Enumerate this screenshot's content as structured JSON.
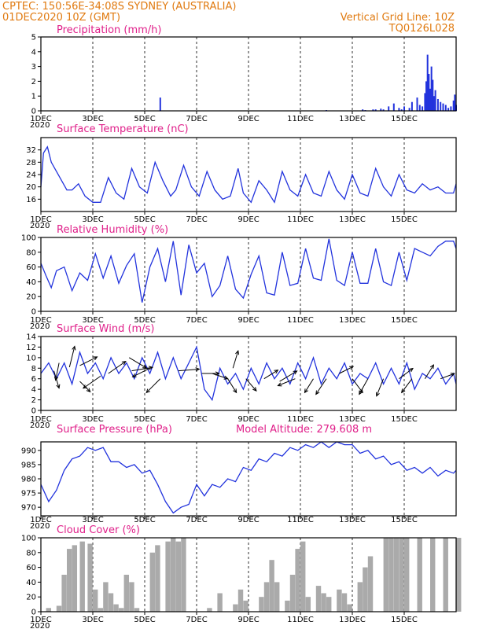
{
  "header": {
    "line1_left": "CPTEC:   150:56E-34:08S   SYDNEY (AUSTRALIA)",
    "line2_left": "01DEC2020 10Z (GMT)",
    "line2_right": "Vertical Grid Line: 10Z",
    "line3_right": "TQ0126L028"
  },
  "x_labels": [
    "1DEC",
    "3DEC",
    "5DEC",
    "7DEC",
    "9DEC",
    "11DEC",
    "13DEC",
    "15DEC"
  ],
  "x_sublabel": "2020",
  "colors": {
    "line": "#2233dd",
    "bar": "#2233dd",
    "cloud": "#aaaaaa",
    "header": "#e07a10",
    "title": "#e0208a"
  },
  "chart_data": [
    {
      "type": "bar",
      "title": "Precipitation (mm/h)",
      "ylim": [
        0,
        5
      ],
      "yticks": [
        0,
        1,
        2,
        3,
        4,
        5
      ],
      "x": [
        4.6,
        11.0,
        12.4,
        12.5,
        12.8,
        12.9,
        13.1,
        13.2,
        13.4,
        13.6,
        13.8,
        13.9,
        14.0,
        14.2,
        14.3,
        14.5,
        14.6,
        14.7,
        14.8,
        14.85,
        14.9,
        14.95,
        15.0,
        15.05,
        15.1,
        15.15,
        15.2,
        15.3,
        15.4,
        15.5,
        15.6,
        15.7,
        15.8,
        15.9,
        15.95,
        16.0
      ],
      "values": [
        0.9,
        0.05,
        0.1,
        0.05,
        0.1,
        0.1,
        0.15,
        0.1,
        0.3,
        0.5,
        0.2,
        0.1,
        0.3,
        0.2,
        0.6,
        0.9,
        0.4,
        0.3,
        1.2,
        2.0,
        3.8,
        2.5,
        1.5,
        3.0,
        2.1,
        1.0,
        1.4,
        0.8,
        0.6,
        0.5,
        0.4,
        0.2,
        0.3,
        0.7,
        1.1,
        0.4
      ]
    },
    {
      "type": "line",
      "title": "Surface Temperature (nC)",
      "ylim": [
        12,
        36
      ],
      "yticks": [
        16,
        20,
        24,
        28,
        32
      ],
      "x": [
        0,
        0.1,
        0.25,
        0.4,
        0.6,
        0.8,
        1.0,
        1.2,
        1.45,
        1.7,
        2.0,
        2.3,
        2.6,
        2.9,
        3.2,
        3.5,
        3.8,
        4.1,
        4.4,
        4.7,
        5.0,
        5.2,
        5.5,
        5.8,
        6.1,
        6.4,
        6.7,
        7.0,
        7.3,
        7.6,
        7.8,
        8.1,
        8.4,
        8.7,
        9.0,
        9.3,
        9.6,
        9.9,
        10.2,
        10.5,
        10.8,
        11.1,
        11.4,
        11.7,
        12.0,
        12.3,
        12.6,
        12.9,
        13.2,
        13.5,
        13.8,
        14.1,
        14.4,
        14.7,
        15.0,
        15.3,
        15.6,
        15.9,
        16.0
      ],
      "values": [
        20,
        31,
        33,
        28,
        25,
        22,
        19,
        19,
        21,
        17,
        15,
        15,
        23,
        18,
        16,
        26,
        20,
        18,
        28,
        22,
        17,
        19,
        27,
        20,
        17,
        25,
        19,
        16,
        17,
        26,
        18,
        15,
        22,
        19,
        15,
        25,
        19,
        17,
        24,
        18,
        17,
        25,
        19,
        16,
        24,
        18,
        17,
        26,
        20,
        17,
        24,
        19,
        18,
        21,
        19,
        20,
        18,
        18,
        21
      ]
    },
    {
      "type": "line",
      "title": "Relative Humidity (%)",
      "ylim": [
        0,
        100
      ],
      "yticks": [
        0,
        20,
        40,
        60,
        80,
        100
      ],
      "x": [
        0,
        0.2,
        0.4,
        0.6,
        0.9,
        1.2,
        1.5,
        1.8,
        2.1,
        2.4,
        2.7,
        3.0,
        3.3,
        3.6,
        3.9,
        4.2,
        4.5,
        4.8,
        5.1,
        5.4,
        5.7,
        6.0,
        6.3,
        6.6,
        6.9,
        7.2,
        7.5,
        7.8,
        8.1,
        8.4,
        8.7,
        9.0,
        9.3,
        9.6,
        9.9,
        10.2,
        10.5,
        10.8,
        11.1,
        11.4,
        11.7,
        12.0,
        12.3,
        12.6,
        12.9,
        13.2,
        13.5,
        13.8,
        14.1,
        14.4,
        14.7,
        15.0,
        15.3,
        15.6,
        15.9,
        16.0
      ],
      "values": [
        65,
        48,
        32,
        55,
        60,
        28,
        52,
        42,
        78,
        45,
        75,
        38,
        62,
        78,
        12,
        60,
        85,
        40,
        95,
        22,
        90,
        52,
        65,
        20,
        35,
        75,
        30,
        18,
        50,
        75,
        25,
        22,
        80,
        35,
        38,
        85,
        45,
        42,
        98,
        42,
        35,
        80,
        38,
        38,
        85,
        40,
        35,
        80,
        42,
        85,
        80,
        75,
        88,
        95,
        95,
        85
      ]
    },
    {
      "type": "line",
      "title": "Surface Wind (m/s)",
      "ylim": [
        0,
        14
      ],
      "yticks": [
        0,
        2,
        4,
        6,
        8,
        10,
        12,
        14
      ],
      "x": [
        0,
        0.3,
        0.6,
        0.9,
        1.2,
        1.5,
        1.8,
        2.1,
        2.4,
        2.7,
        3.0,
        3.3,
        3.6,
        3.9,
        4.2,
        4.5,
        4.8,
        5.1,
        5.4,
        5.7,
        6.0,
        6.3,
        6.6,
        6.9,
        7.2,
        7.5,
        7.8,
        8.1,
        8.4,
        8.7,
        9.0,
        9.3,
        9.6,
        9.9,
        10.2,
        10.5,
        10.8,
        11.1,
        11.4,
        11.7,
        12.0,
        12.3,
        12.6,
        12.9,
        13.2,
        13.5,
        13.8,
        14.1,
        14.4,
        14.7,
        15.0,
        15.3,
        15.6,
        15.9,
        16.0
      ],
      "values": [
        7,
        9,
        6,
        9,
        5,
        11,
        7,
        9,
        6,
        10,
        7,
        9,
        6,
        10,
        7,
        11,
        6,
        10,
        6,
        9,
        12,
        4,
        2,
        8,
        5,
        7,
        4,
        8,
        5,
        9,
        6,
        8,
        5,
        9,
        6,
        10,
        5,
        8,
        6,
        9,
        5,
        7,
        6,
        9,
        5,
        8,
        5,
        9,
        4,
        7,
        6,
        8,
        5,
        7,
        5
      ]
    },
    {
      "type": "line",
      "title": "Surface Pressure (hPa)",
      "annotation": "Model Altitude: 279.608  m",
      "ylim": [
        967,
        993
      ],
      "yticks": [
        970,
        975,
        980,
        985,
        990
      ],
      "x": [
        0,
        0.3,
        0.6,
        0.9,
        1.2,
        1.5,
        1.8,
        2.1,
        2.4,
        2.7,
        3.0,
        3.3,
        3.6,
        3.9,
        4.2,
        4.5,
        4.8,
        5.1,
        5.4,
        5.7,
        6.0,
        6.3,
        6.6,
        6.9,
        7.2,
        7.5,
        7.8,
        8.1,
        8.4,
        8.7,
        9.0,
        9.3,
        9.6,
        9.9,
        10.2,
        10.5,
        10.8,
        11.1,
        11.4,
        11.7,
        12.0,
        12.3,
        12.6,
        12.9,
        13.2,
        13.5,
        13.8,
        14.1,
        14.4,
        14.7,
        15.0,
        15.3,
        15.6,
        15.9,
        16.0
      ],
      "values": [
        978,
        972,
        976,
        983,
        987,
        988,
        991,
        990,
        991,
        986,
        986,
        984,
        985,
        982,
        983,
        978,
        972,
        968,
        970,
        971,
        978,
        974,
        978,
        977,
        980,
        979,
        984,
        983,
        987,
        986,
        989,
        988,
        991,
        990,
        992,
        991,
        993,
        991,
        993,
        992,
        992,
        989,
        990,
        987,
        988,
        985,
        986,
        983,
        984,
        982,
        984,
        981,
        983,
        982,
        983
      ]
    },
    {
      "type": "area",
      "title": "Cloud Cover (%)",
      "ylim": [
        0,
        100
      ],
      "yticks": [
        0,
        20,
        40,
        60,
        80,
        100
      ],
      "x": [
        0,
        0.2,
        0.4,
        0.6,
        0.8,
        1.0,
        1.2,
        1.5,
        1.8,
        2.0,
        2.2,
        2.4,
        2.6,
        2.8,
        3.0,
        3.2,
        3.4,
        3.6,
        3.8,
        4.0,
        4.2,
        4.4,
        4.6,
        4.8,
        5.0,
        5.2,
        5.4,
        5.6,
        5.8,
        6.0,
        6.2,
        6.4,
        6.6,
        6.8,
        7.0,
        7.2,
        7.4,
        7.6,
        7.8,
        8.0,
        8.2,
        8.4,
        8.6,
        8.8,
        9.0,
        9.2,
        9.4,
        9.6,
        9.8,
        10.0,
        10.2,
        10.4,
        10.6,
        10.8,
        11.0,
        11.2,
        11.4,
        11.6,
        11.8,
        12.0,
        12.2,
        12.4,
        12.6,
        12.8,
        13.0,
        13.2,
        13.4,
        13.6,
        13.8,
        14.0,
        14.5,
        15.0,
        15.5,
        16.0
      ],
      "values": [
        0,
        5,
        0,
        8,
        50,
        85,
        90,
        95,
        92,
        30,
        5,
        40,
        25,
        10,
        5,
        50,
        40,
        5,
        0,
        0,
        80,
        90,
        0,
        95,
        100,
        95,
        100,
        0,
        0,
        0,
        0,
        5,
        0,
        25,
        0,
        0,
        10,
        30,
        15,
        0,
        0,
        20,
        40,
        70,
        40,
        0,
        15,
        50,
        85,
        95,
        20,
        0,
        35,
        25,
        20,
        0,
        30,
        25,
        10,
        0,
        40,
        60,
        75,
        0,
        0,
        100,
        100,
        100,
        100,
        100,
        100,
        100,
        100,
        100
      ]
    }
  ],
  "wind_vectors": [
    {
      "x": 0.5,
      "y": 7.5,
      "u": 0.3,
      "v": -1.0
    },
    {
      "x": 0.7,
      "y": 9,
      "u": -0.2,
      "v": -1.0
    },
    {
      "x": 1.1,
      "y": 8.2,
      "u": 0.3,
      "v": 1.2
    },
    {
      "x": 1.5,
      "y": 8.5,
      "u": 1.0,
      "v": 0.5
    },
    {
      "x": 1.5,
      "y": 5.5,
      "u": 0.6,
      "v": -0.6
    },
    {
      "x": 2.3,
      "y": 6.5,
      "u": -1.0,
      "v": -0.7
    },
    {
      "x": 2.6,
      "y": 7,
      "u": 1.0,
      "v": 0.7
    },
    {
      "x": 3.4,
      "y": 10,
      "u": 1.0,
      "v": -0.6
    },
    {
      "x": 3.5,
      "y": 7.5,
      "u": 1.2,
      "v": 0.2
    },
    {
      "x": 4.2,
      "y": 8,
      "u": -1.0,
      "v": -0.5
    },
    {
      "x": 4.6,
      "y": 6,
      "u": -0.8,
      "v": -0.8
    },
    {
      "x": 5.3,
      "y": 7.5,
      "u": 1.2,
      "v": 0.1
    },
    {
      "x": 6.2,
      "y": 7,
      "u": 1.0,
      "v": 0.0
    },
    {
      "x": 6.6,
      "y": 7,
      "u": 0.9,
      "v": -0.3
    },
    {
      "x": 7.2,
      "y": 6,
      "u": 0.5,
      "v": -0.8
    },
    {
      "x": 7.4,
      "y": 8,
      "u": 0.3,
      "v": 1.0
    },
    {
      "x": 7.9,
      "y": 6,
      "u": 0.6,
      "v": -0.7
    },
    {
      "x": 8.6,
      "y": 6,
      "u": 0.8,
      "v": 0.5
    },
    {
      "x": 9.2,
      "y": 5.5,
      "u": 1.0,
      "v": 0.6
    },
    {
      "x": 9.8,
      "y": 6,
      "u": -1.0,
      "v": -0.4
    },
    {
      "x": 10.5,
      "y": 6,
      "u": -0.5,
      "v": -0.8
    },
    {
      "x": 11.0,
      "y": 6,
      "u": -0.6,
      "v": -0.9
    },
    {
      "x": 11.5,
      "y": 7,
      "u": 0.8,
      "v": 0.4
    },
    {
      "x": 12.0,
      "y": 6,
      "u": 0.6,
      "v": -0.8
    },
    {
      "x": 12.6,
      "y": 6,
      "u": -0.5,
      "v": -0.9
    },
    {
      "x": 13.2,
      "y": 6,
      "u": -0.4,
      "v": -1.0
    },
    {
      "x": 13.8,
      "y": 6,
      "u": 0.8,
      "v": 0.6
    },
    {
      "x": 14.3,
      "y": 6,
      "u": -0.6,
      "v": -0.8
    },
    {
      "x": 14.8,
      "y": 6,
      "u": 0.5,
      "v": 0.8
    },
    {
      "x": 15.4,
      "y": 6,
      "u": 0.8,
      "v": 0.3
    }
  ]
}
